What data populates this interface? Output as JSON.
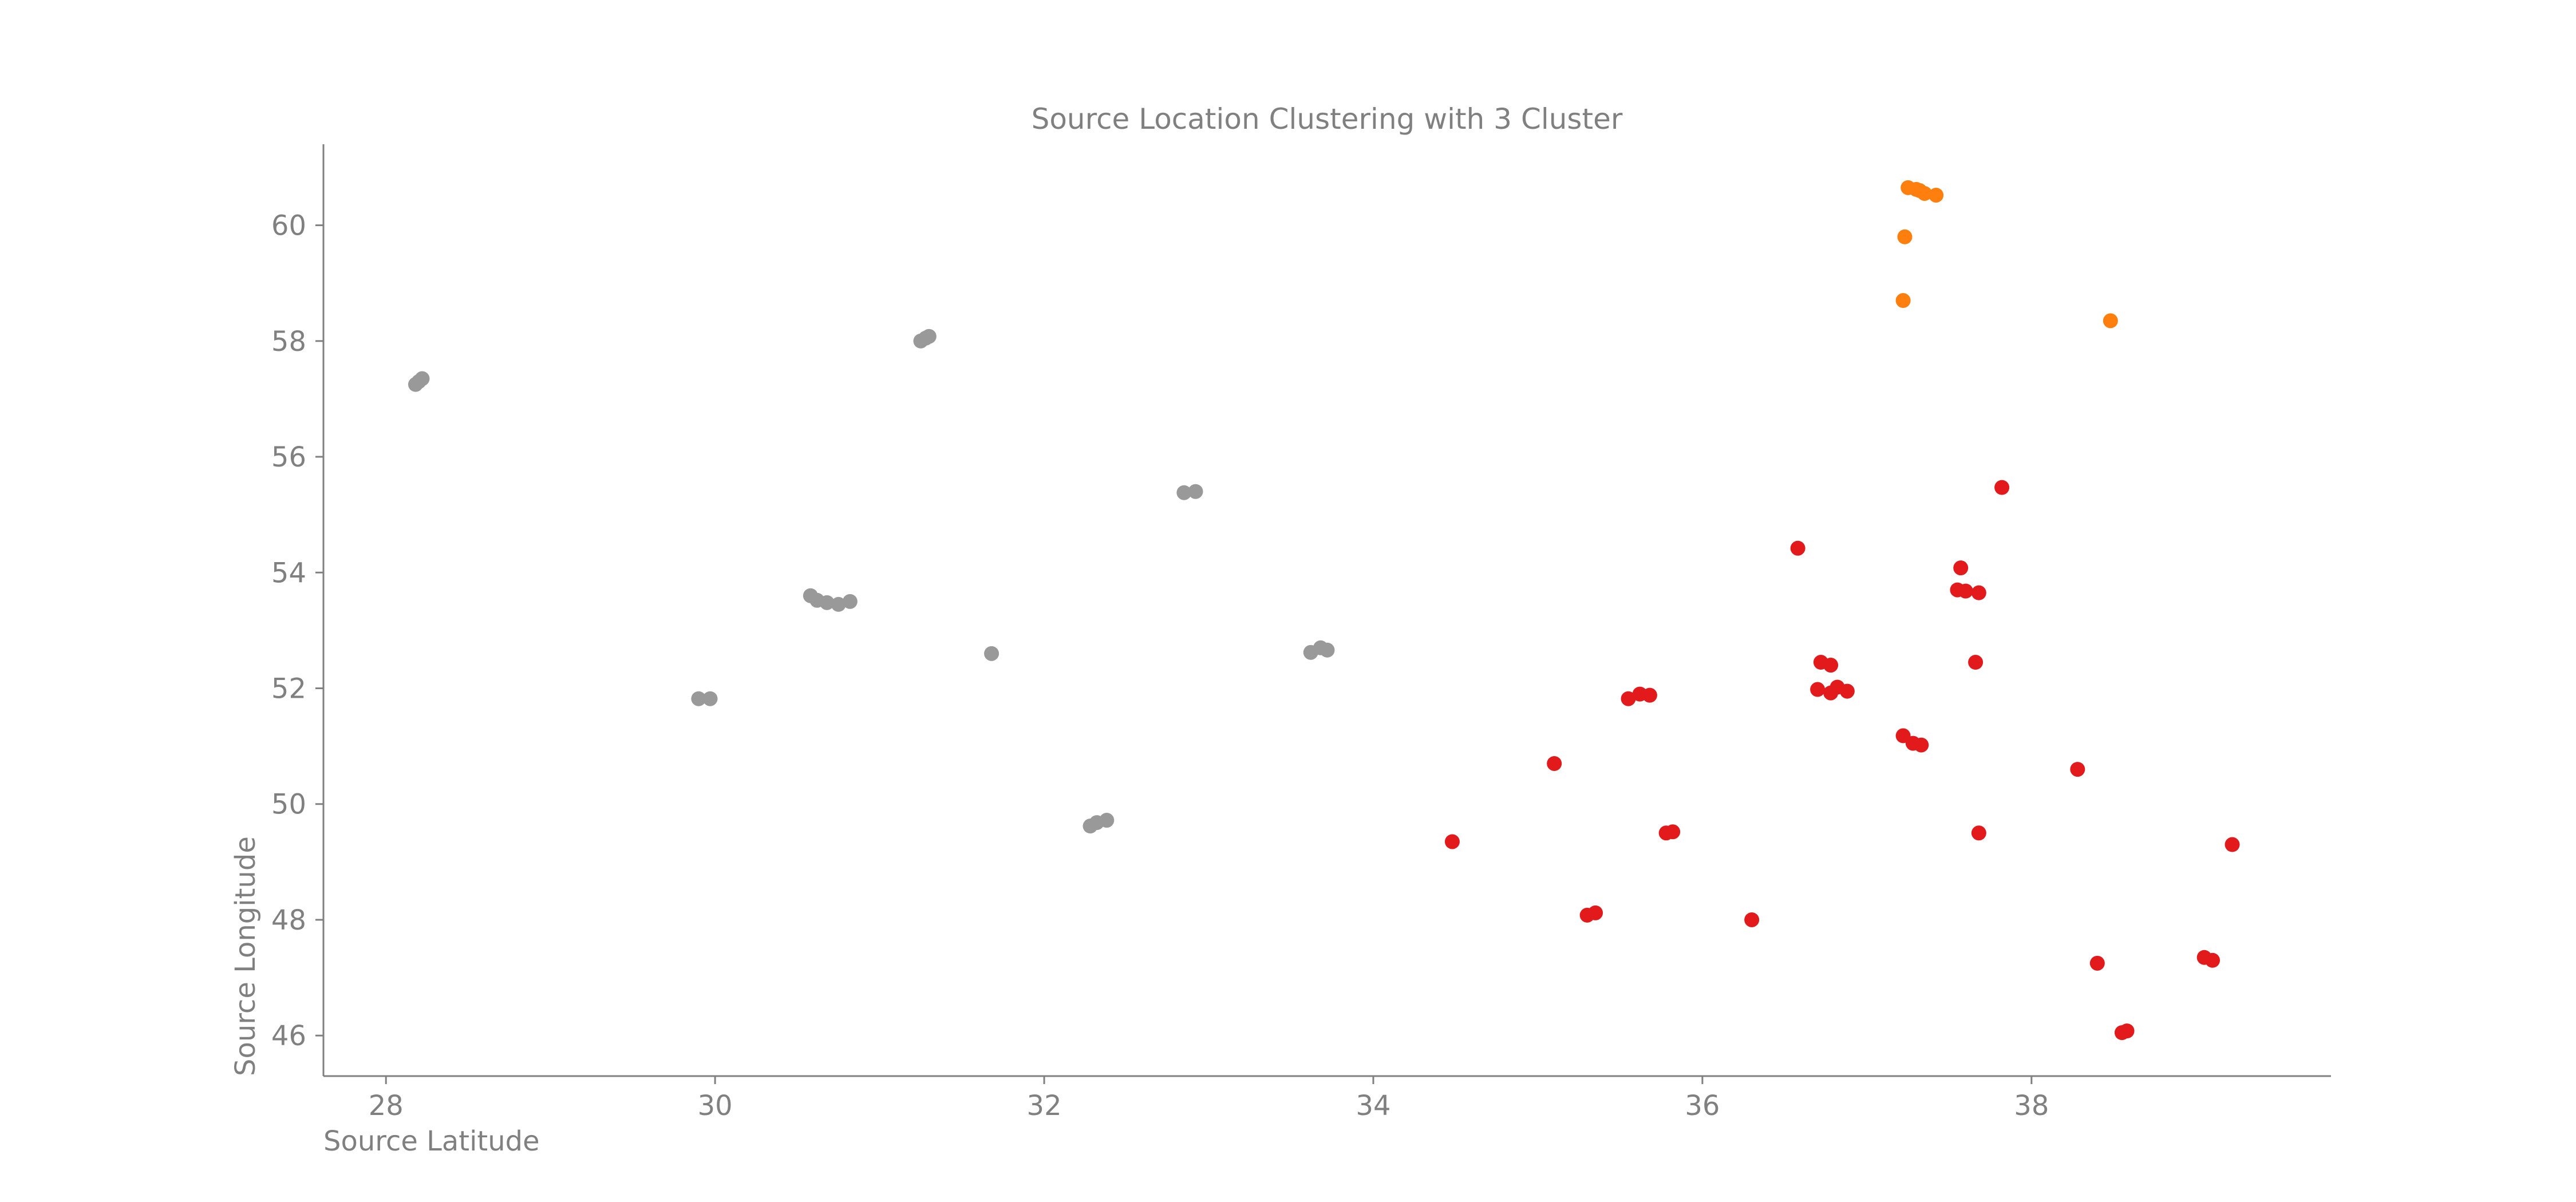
{
  "chart_data": {
    "type": "scatter",
    "title": "Source Location Clustering with 3 Cluster",
    "xlabel": "Source Latitude",
    "ylabel": "Source Longitude",
    "xlim": [
      27.62,
      39.82
    ],
    "ylim": [
      45.3,
      61.4
    ],
    "xticks": [
      28,
      30,
      32,
      34,
      36,
      38
    ],
    "yticks": [
      46,
      48,
      50,
      52,
      54,
      56,
      58,
      60
    ],
    "grid": false,
    "legend": "none",
    "colors": {
      "axis": "#808080",
      "text": "#808080",
      "background": "#ffffff"
    },
    "series": [
      {
        "color": "#999999",
        "points": [
          [
            28.18,
            57.25
          ],
          [
            28.22,
            57.35
          ],
          [
            28.2,
            57.3
          ],
          [
            31.25,
            58.0
          ],
          [
            31.3,
            58.08
          ],
          [
            31.28,
            58.05
          ],
          [
            29.9,
            51.82
          ],
          [
            29.97,
            51.82
          ],
          [
            30.58,
            53.6
          ],
          [
            30.62,
            53.52
          ],
          [
            30.68,
            53.48
          ],
          [
            30.75,
            53.45
          ],
          [
            30.82,
            53.5
          ],
          [
            31.68,
            52.6
          ],
          [
            32.85,
            55.38
          ],
          [
            32.92,
            55.4
          ],
          [
            32.28,
            49.62
          ],
          [
            32.32,
            49.68
          ],
          [
            32.38,
            49.72
          ],
          [
            33.62,
            52.62
          ],
          [
            33.68,
            52.7
          ],
          [
            33.72,
            52.66
          ]
        ]
      },
      {
        "color": "#ff7f0e",
        "points": [
          [
            37.25,
            60.65
          ],
          [
            37.3,
            60.62
          ],
          [
            37.35,
            60.55
          ],
          [
            37.42,
            60.52
          ],
          [
            37.32,
            60.6
          ],
          [
            37.23,
            59.8
          ],
          [
            37.22,
            58.7
          ],
          [
            38.48,
            58.35
          ]
        ]
      },
      {
        "color": "#e31a1c",
        "points": [
          [
            34.48,
            49.35
          ],
          [
            35.1,
            50.7
          ],
          [
            35.3,
            48.08
          ],
          [
            35.35,
            48.12
          ],
          [
            35.55,
            51.82
          ],
          [
            35.62,
            51.9
          ],
          [
            35.68,
            51.88
          ],
          [
            35.78,
            49.5
          ],
          [
            35.82,
            49.52
          ],
          [
            36.3,
            48.0
          ],
          [
            36.58,
            54.42
          ],
          [
            36.72,
            52.45
          ],
          [
            36.78,
            52.4
          ],
          [
            36.7,
            51.98
          ],
          [
            36.78,
            51.92
          ],
          [
            36.82,
            52.02
          ],
          [
            36.88,
            51.95
          ],
          [
            37.22,
            51.18
          ],
          [
            37.28,
            51.05
          ],
          [
            37.33,
            51.02
          ],
          [
            37.55,
            53.7
          ],
          [
            37.6,
            53.68
          ],
          [
            37.57,
            54.08
          ],
          [
            37.68,
            53.65
          ],
          [
            37.66,
            52.45
          ],
          [
            37.68,
            49.5
          ],
          [
            37.82,
            55.47
          ],
          [
            38.28,
            50.6
          ],
          [
            38.4,
            47.25
          ],
          [
            38.55,
            46.05
          ],
          [
            38.58,
            46.08
          ],
          [
            39.05,
            47.35
          ],
          [
            39.1,
            47.3
          ],
          [
            39.22,
            49.3
          ]
        ]
      }
    ]
  }
}
